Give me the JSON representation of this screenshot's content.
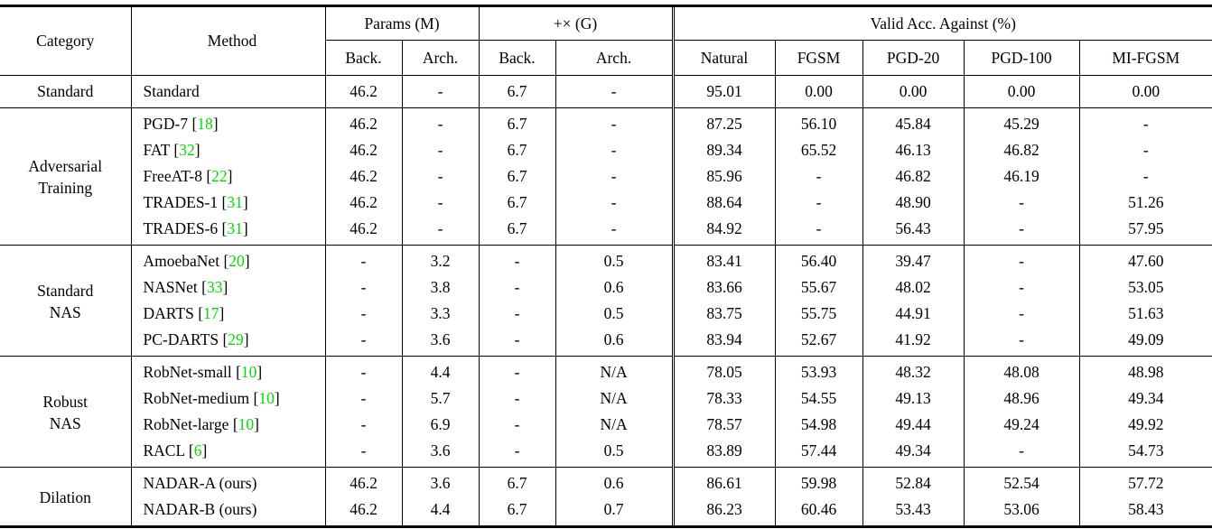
{
  "header": {
    "category": "Category",
    "method": "Method",
    "params_group": "Params (M)",
    "flops_group": "+× (G)",
    "validacc_group": "Valid Acc. Against (%)",
    "subcols": [
      "Back.",
      "Arch.",
      "Back.",
      "Arch.",
      "Natural",
      "FGSM",
      "PGD-20",
      "PGD-100",
      "MI-FGSM"
    ]
  },
  "punct": {
    "cite_open": " [",
    "cite_close": "]"
  },
  "colors": {
    "citation_green": "#00DD00",
    "text": "#000000",
    "background": "#FFFFFF",
    "rule": "#000000"
  },
  "sections": [
    {
      "category": "Standard",
      "rows": [
        {
          "method": {
            "name": "Standard",
            "cite": null
          },
          "cells": [
            "46.2",
            "-",
            "6.7",
            "-",
            "95.01",
            "0.00",
            "0.00",
            "0.00",
            "0.00"
          ]
        }
      ]
    },
    {
      "category": "Adversarial\nTraining",
      "rows": [
        {
          "method": {
            "name": "PGD-7",
            "cite": "18"
          },
          "cells": [
            "46.2",
            "-",
            "6.7",
            "-",
            "87.25",
            "56.10",
            "45.84",
            "45.29",
            "-"
          ]
        },
        {
          "method": {
            "name": "FAT",
            "cite": "32"
          },
          "cells": [
            "46.2",
            "-",
            "6.7",
            "-",
            "89.34",
            "65.52",
            "46.13",
            "46.82",
            "-"
          ]
        },
        {
          "method": {
            "name": "FreeAT-8",
            "cite": "22"
          },
          "cells": [
            "46.2",
            "-",
            "6.7",
            "-",
            "85.96",
            "-",
            "46.82",
            "46.19",
            "-"
          ]
        },
        {
          "method": {
            "name": "TRADES-1",
            "cite": "31"
          },
          "cells": [
            "46.2",
            "-",
            "6.7",
            "-",
            "88.64",
            "-",
            "48.90",
            "-",
            "51.26"
          ]
        },
        {
          "method": {
            "name": "TRADES-6",
            "cite": "31"
          },
          "cells": [
            "46.2",
            "-",
            "6.7",
            "-",
            "84.92",
            "-",
            "56.43",
            "-",
            "57.95"
          ]
        }
      ]
    },
    {
      "category": "Standard\nNAS",
      "rows": [
        {
          "method": {
            "name": "AmoebaNet",
            "cite": "20"
          },
          "cells": [
            "-",
            "3.2",
            "-",
            "0.5",
            "83.41",
            "56.40",
            "39.47",
            "-",
            "47.60"
          ]
        },
        {
          "method": {
            "name": "NASNet",
            "cite": "33"
          },
          "cells": [
            "-",
            "3.8",
            "-",
            "0.6",
            "83.66",
            "55.67",
            "48.02",
            "-",
            "53.05"
          ]
        },
        {
          "method": {
            "name": "DARTS",
            "cite": "17"
          },
          "cells": [
            "-",
            "3.3",
            "-",
            "0.5",
            "83.75",
            "55.75",
            "44.91",
            "-",
            "51.63"
          ]
        },
        {
          "method": {
            "name": "PC-DARTS",
            "cite": "29"
          },
          "cells": [
            "-",
            "3.6",
            "-",
            "0.6",
            "83.94",
            "52.67",
            "41.92",
            "-",
            "49.09"
          ]
        }
      ]
    },
    {
      "category": "Robust\nNAS",
      "rows": [
        {
          "method": {
            "name": "RobNet-small",
            "cite": "10"
          },
          "cells": [
            "-",
            "4.4",
            "-",
            "N/A",
            "78.05",
            "53.93",
            "48.32",
            "48.08",
            "48.98"
          ]
        },
        {
          "method": {
            "name": "RobNet-medium",
            "cite": "10"
          },
          "cells": [
            "-",
            "5.7",
            "-",
            "N/A",
            "78.33",
            "54.55",
            "49.13",
            "48.96",
            "49.34"
          ]
        },
        {
          "method": {
            "name": "RobNet-large",
            "cite": "10"
          },
          "cells": [
            "-",
            "6.9",
            "-",
            "N/A",
            "78.57",
            "54.98",
            "49.44",
            "49.24",
            "49.92"
          ]
        },
        {
          "method": {
            "name": "RACL",
            "cite": "6"
          },
          "cells": [
            "-",
            "3.6",
            "-",
            "0.5",
            "83.89",
            "57.44",
            "49.34",
            "-",
            "54.73"
          ]
        }
      ]
    },
    {
      "category": "Dilation",
      "rows": [
        {
          "method": {
            "name": "NADAR-A (ours)",
            "cite": null
          },
          "cells": [
            "46.2",
            "3.6",
            "6.7",
            "0.6",
            "86.61",
            "59.98",
            "52.84",
            "52.54",
            "57.72"
          ]
        },
        {
          "method": {
            "name": "NADAR-B (ours)",
            "cite": null
          },
          "cells": [
            "46.2",
            "4.4",
            "6.7",
            "0.7",
            "86.23",
            "60.46",
            "53.43",
            "53.06",
            "58.43"
          ]
        }
      ]
    }
  ]
}
